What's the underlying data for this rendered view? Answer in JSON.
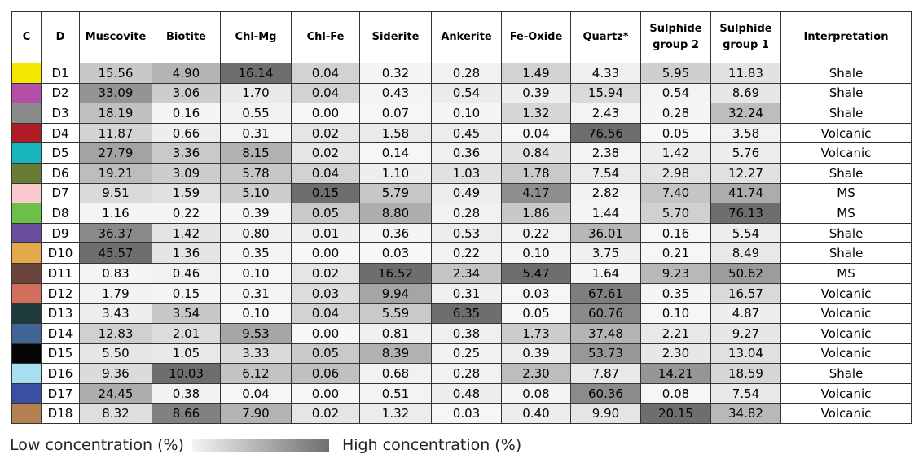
{
  "table": {
    "headers": [
      "C",
      "D",
      "Muscovite",
      "Biotite",
      "Chl-Mg",
      "Chl-Fe",
      "Siderite",
      "Ankerite",
      "Fe-Oxide",
      "Quartz*",
      "Sulphide group 2",
      "Sulphide group 1",
      "Interpretation"
    ],
    "rows": [
      {
        "color": "#f5e800",
        "code": "D1",
        "values": [
          "15.56",
          "4.90",
          "16.14",
          "0.04",
          "0.32",
          "0.28",
          "1.49",
          "4.33",
          "5.95",
          "11.83"
        ],
        "interpretation": "Shale"
      },
      {
        "color": "#b44fa8",
        "code": "D2",
        "values": [
          "33.09",
          "3.06",
          "1.70",
          "0.04",
          "0.43",
          "0.54",
          "0.39",
          "15.94",
          "0.54",
          "8.69"
        ],
        "interpretation": "Shale"
      },
      {
        "color": "#8a8a8a",
        "code": "D3",
        "values": [
          "18.19",
          "0.16",
          "0.55",
          "0.00",
          "0.07",
          "0.10",
          "1.32",
          "2.43",
          "0.28",
          "32.24"
        ],
        "interpretation": "Shale"
      },
      {
        "color": "#b01c25",
        "code": "D4",
        "values": [
          "11.87",
          "0.66",
          "0.31",
          "0.02",
          "1.58",
          "0.45",
          "0.04",
          "76.56",
          "0.05",
          "3.58"
        ],
        "interpretation": "Volcanic"
      },
      {
        "color": "#17b6bd",
        "code": "D5",
        "values": [
          "27.79",
          "3.36",
          "8.15",
          "0.02",
          "0.14",
          "0.36",
          "0.84",
          "2.38",
          "1.42",
          "5.76"
        ],
        "interpretation": "Volcanic"
      },
      {
        "color": "#6a7b35",
        "code": "D6",
        "values": [
          "19.21",
          "3.09",
          "5.78",
          "0.04",
          "1.10",
          "1.03",
          "1.78",
          "7.54",
          "2.98",
          "12.27"
        ],
        "interpretation": "Shale"
      },
      {
        "color": "#f9c9cf",
        "code": "D7",
        "values": [
          "9.51",
          "1.59",
          "5.10",
          "0.15",
          "5.79",
          "0.49",
          "4.17",
          "2.82",
          "7.40",
          "41.74"
        ],
        "interpretation": "MS"
      },
      {
        "color": "#6cc04a",
        "code": "D8",
        "values": [
          "1.16",
          "0.22",
          "0.39",
          "0.05",
          "8.80",
          "0.28",
          "1.86",
          "1.44",
          "5.70",
          "76.13"
        ],
        "interpretation": "MS"
      },
      {
        "color": "#6a4ea0",
        "code": "D9",
        "values": [
          "36.37",
          "1.42",
          "0.80",
          "0.01",
          "0.36",
          "0.53",
          "0.22",
          "36.01",
          "0.16",
          "5.54"
        ],
        "interpretation": "Shale"
      },
      {
        "color": "#e3a94a",
        "code": "D10",
        "values": [
          "45.57",
          "1.36",
          "0.35",
          "0.00",
          "0.03",
          "0.22",
          "0.10",
          "3.75",
          "0.21",
          "8.49"
        ],
        "interpretation": "Shale"
      },
      {
        "color": "#6b453b",
        "code": "D11",
        "values": [
          "0.83",
          "0.46",
          "0.10",
          "0.02",
          "16.52",
          "2.34",
          "5.47",
          "1.64",
          "9.23",
          "50.62"
        ],
        "interpretation": "MS"
      },
      {
        "color": "#d0705c",
        "code": "D12",
        "values": [
          "1.79",
          "0.15",
          "0.31",
          "0.03",
          "9.94",
          "0.31",
          "0.03",
          "67.61",
          "0.35",
          "16.57"
        ],
        "interpretation": "Volcanic"
      },
      {
        "color": "#1e3a3a",
        "code": "D13",
        "values": [
          "3.43",
          "3.54",
          "0.10",
          "0.04",
          "5.59",
          "6.35",
          "0.05",
          "60.76",
          "0.10",
          "4.87"
        ],
        "interpretation": "Volcanic"
      },
      {
        "color": "#3f6496",
        "code": "D14",
        "values": [
          "12.83",
          "2.01",
          "9.53",
          "0.00",
          "0.81",
          "0.38",
          "1.73",
          "37.48",
          "2.21",
          "9.27"
        ],
        "interpretation": "Volcanic"
      },
      {
        "color": "#050505",
        "code": "D15",
        "values": [
          "5.50",
          "1.05",
          "3.33",
          "0.05",
          "8.39",
          "0.25",
          "0.39",
          "53.73",
          "2.30",
          "13.04"
        ],
        "interpretation": "Volcanic"
      },
      {
        "color": "#a8dff0",
        "code": "D16",
        "values": [
          "9.36",
          "10.03",
          "6.12",
          "0.06",
          "0.68",
          "0.28",
          "2.30",
          "7.87",
          "14.21",
          "18.59"
        ],
        "interpretation": "Shale"
      },
      {
        "color": "#3a4ea3",
        "code": "D17",
        "values": [
          "24.45",
          "0.38",
          "0.04",
          "0.00",
          "0.51",
          "0.48",
          "0.08",
          "60.36",
          "0.08",
          "7.54"
        ],
        "interpretation": "Volcanic"
      },
      {
        "color": "#b58050",
        "code": "D18",
        "values": [
          "8.32",
          "8.66",
          "7.90",
          "0.02",
          "1.32",
          "0.03",
          "0.40",
          "9.90",
          "20.15",
          "34.82"
        ],
        "interpretation": "Volcanic"
      }
    ]
  },
  "legend": {
    "low": "Low concentration (%)",
    "high": "High concentration (%)"
  }
}
